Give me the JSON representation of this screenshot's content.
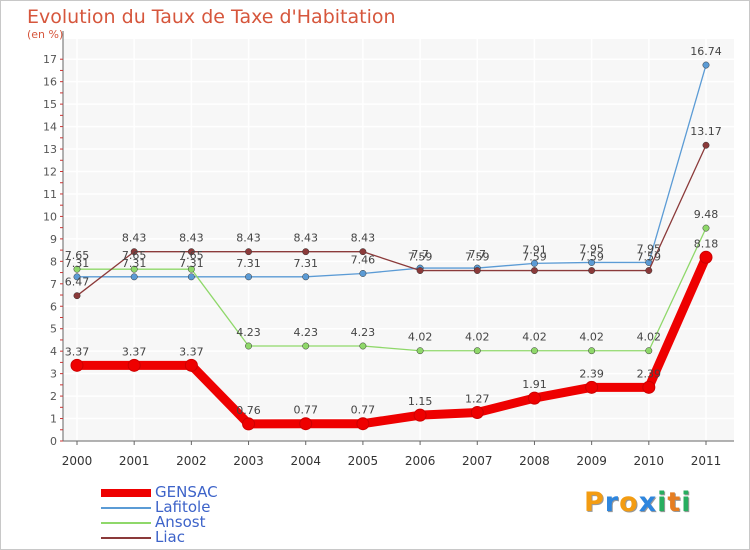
{
  "chart_data": {
    "type": "line",
    "title": "Evolution du Taux de Taxe d'Habitation",
    "unit_label": "(en %)",
    "xlabel": "",
    "ylabel": "(en %)",
    "ylim": [
      0,
      17
    ],
    "yticks": [
      0,
      1,
      2,
      3,
      4,
      5,
      6,
      7,
      8,
      9,
      10,
      11,
      12,
      13,
      14,
      15,
      16,
      17
    ],
    "categories": [
      "2000",
      "2001",
      "2002",
      "2003",
      "2004",
      "2005",
      "2006",
      "2007",
      "2008",
      "2009",
      "2010",
      "2011"
    ],
    "grid": true,
    "series": [
      {
        "name": "GENSAC",
        "color": "#ee0000",
        "values": [
          3.37,
          3.37,
          3.37,
          0.76,
          0.77,
          0.77,
          1.15,
          1.27,
          1.91,
          2.39,
          2.39,
          8.18
        ],
        "labels": [
          "3.37",
          "3.37",
          "3.37",
          "0.76",
          "0.77",
          "0.77",
          "1.15",
          "1.27",
          "1.91",
          "2.39",
          "2.39",
          "8.18"
        ]
      },
      {
        "name": "Lafitole",
        "color": "#5b9bd5",
        "values": [
          7.31,
          7.31,
          7.31,
          7.31,
          7.31,
          7.46,
          7.7,
          7.7,
          7.91,
          7.95,
          7.95,
          16.74
        ],
        "labels": [
          "7.31",
          "7.31",
          "7.31",
          "7.31",
          "7.31",
          "7.46",
          "7.7",
          "7.7",
          "7.91",
          "7.95",
          "7.95",
          "16.74"
        ]
      },
      {
        "name": "Ansost",
        "color": "#8fd86a",
        "values": [
          7.65,
          7.65,
          7.65,
          4.23,
          4.23,
          4.23,
          4.02,
          4.02,
          4.02,
          4.02,
          4.02,
          9.48
        ],
        "labels": [
          "7.65",
          "7.65",
          "7.65",
          "4.23",
          "4.23",
          "4.23",
          "4.02",
          "4.02",
          "4.02",
          "4.02",
          "4.02",
          "9.48"
        ]
      },
      {
        "name": "Liac",
        "color": "#8b3a3a",
        "values": [
          6.47,
          8.43,
          8.43,
          8.43,
          8.43,
          8.43,
          7.59,
          7.59,
          7.59,
          7.59,
          7.59,
          13.17
        ],
        "labels": [
          "6.47",
          "8.43",
          "8.43",
          "8.43",
          "8.43",
          "8.43",
          "7.59",
          "7.59",
          "7.59",
          "7.59",
          "7.59",
          "13.17"
        ]
      }
    ],
    "legend_position": "bottom-left"
  },
  "brand": {
    "letters": [
      "P",
      "r",
      "o",
      "x",
      "i",
      "t",
      "i"
    ],
    "colors": [
      "#f39c12",
      "#2e86de",
      "#f39c12",
      "#2e86de",
      "#27ae60",
      "#e67e22",
      "#27ae60"
    ]
  }
}
